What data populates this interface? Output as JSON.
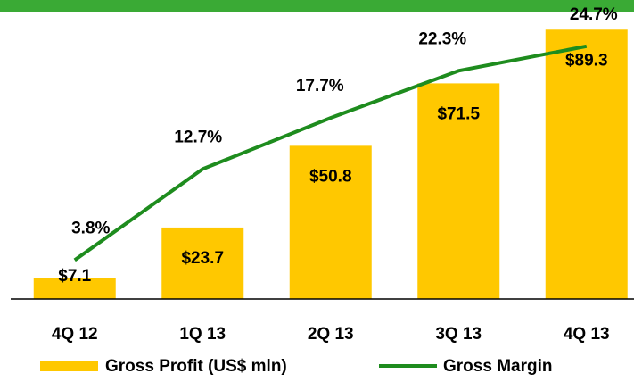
{
  "chart_data": {
    "type": "bar",
    "categories": [
      "4Q 12",
      "1Q 13",
      "2Q 13",
      "3Q 13",
      "4Q 13"
    ],
    "series": [
      {
        "name": "Gross Profit (US$ mln)",
        "color": "#ffc800",
        "values": [
          7.1,
          23.7,
          50.8,
          71.5,
          89.3
        ],
        "value_labels": [
          "$7.1",
          "$23.7",
          "$50.8",
          "$71.5",
          "$89.3"
        ]
      },
      {
        "name": "Gross Margin",
        "color": "#1e8c1e",
        "axis": "y2",
        "type": "line",
        "values": [
          3.8,
          12.7,
          17.7,
          22.3,
          24.7
        ],
        "value_labels": [
          "3.8%",
          "12.7%",
          "17.7%",
          "22.3%",
          "24.7%"
        ]
      }
    ],
    "ylim": [
      0,
      95
    ],
    "y2lim": [
      0,
      28
    ],
    "grid": false
  }
}
